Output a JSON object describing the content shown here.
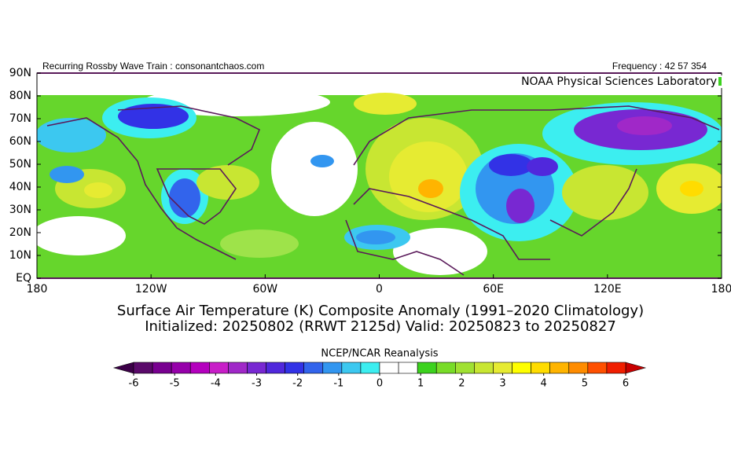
{
  "map": {
    "header_left": "Recurring Rossby Wave Train : consonantchaos.com",
    "header_right": "Frequency : 42 57 354",
    "source": "NOAA Physical Sciences Laboratory",
    "title": "Surface Air Temperature (K) Composite Anomaly (1991–2020 Climatology)",
    "subtitle": "Initialized: 20250802 (RRWT 2125d) Valid: 20250823 to 20250827",
    "xlim": [
      -180,
      180
    ],
    "ylim": [
      0,
      90
    ],
    "xticks": [
      {
        "value": -180,
        "label": "180"
      },
      {
        "value": -120,
        "label": "120W"
      },
      {
        "value": -60,
        "label": "60W"
      },
      {
        "value": 0,
        "label": "0"
      },
      {
        "value": 60,
        "label": "60E"
      },
      {
        "value": 120,
        "label": "120E"
      },
      {
        "value": 180,
        "label": "180"
      }
    ],
    "yticks": [
      {
        "value": 90,
        "label": "90N"
      },
      {
        "value": 80,
        "label": "80N"
      },
      {
        "value": 70,
        "label": "70N"
      },
      {
        "value": 60,
        "label": "60N"
      },
      {
        "value": 50,
        "label": "50N"
      },
      {
        "value": 40,
        "label": "40N"
      },
      {
        "value": 30,
        "label": "30N"
      },
      {
        "value": 20,
        "label": "20N"
      },
      {
        "value": 10,
        "label": "10N"
      },
      {
        "value": 0,
        "label": "EQ"
      }
    ]
  },
  "colorbar": {
    "title": "NCEP/NCAR Reanalysis",
    "lim": [
      -6,
      6
    ],
    "ticks": [
      -6,
      -5,
      -4,
      -3,
      -2,
      -1,
      0,
      1,
      2,
      3,
      4,
      5,
      6
    ],
    "under_color": "#3c0048",
    "over_color": "#c80000",
    "colors": [
      "#5a0a6a",
      "#780090",
      "#9600aa",
      "#b400be",
      "#c81ec8",
      "#a028c8",
      "#7828d2",
      "#5028dc",
      "#3232e6",
      "#3264ec",
      "#3296f0",
      "#3cc8f0",
      "#3ceef0",
      "#ffffff",
      "#ffffff",
      "#3cd21e",
      "#78dc28",
      "#a0e132",
      "#c8e632",
      "#e6eb32",
      "#ffff00",
      "#ffdc00",
      "#ffb400",
      "#ff8c00",
      "#ff5000",
      "#f01e00"
    ]
  }
}
